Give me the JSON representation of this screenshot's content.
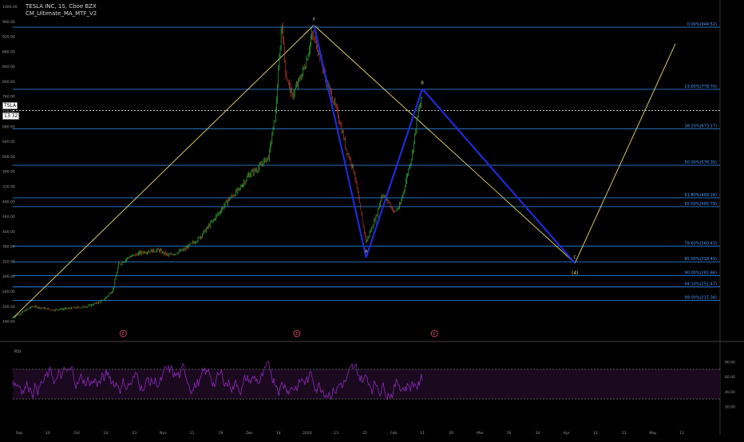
{
  "chart_data": [
    {
      "type": "line",
      "title": "TESLA INC, 1S, Cboe BZX",
      "subtitle": "CM_Ultimate_MA_MTF_V2",
      "ylim": [
        140,
        1000
      ],
      "y_ticks": [
        "1000.00",
        "960.00",
        "920.00",
        "880.00",
        "840.00",
        "800.00",
        "760.00",
        "720.00",
        "680.00",
        "640.00",
        "600.00",
        "560.00",
        "520.00",
        "480.00",
        "440.00",
        "400.00",
        "360.00",
        "320.00",
        "280.00",
        "240.00",
        "200.00",
        "160.00"
      ],
      "x_ticks": [
        "Sep",
        "16",
        "Oct",
        "14",
        "23",
        "Nov",
        "11",
        "19",
        "Dec",
        "14",
        "2020",
        "13",
        "22",
        "Feb",
        "11",
        "20",
        "Mar",
        "16",
        "24",
        "Apr",
        "13",
        "21",
        "May",
        "11"
      ],
      "price_path": [
        {
          "t": 0,
          "price": 170
        },
        {
          "t": 20,
          "price": 200
        },
        {
          "t": 40,
          "price": 190
        },
        {
          "t": 60,
          "price": 195
        },
        {
          "t": 75,
          "price": 200
        },
        {
          "t": 90,
          "price": 215
        },
        {
          "t": 100,
          "price": 245
        },
        {
          "t": 105,
          "price": 310
        },
        {
          "t": 115,
          "price": 330
        },
        {
          "t": 130,
          "price": 345
        },
        {
          "t": 145,
          "price": 350
        },
        {
          "t": 155,
          "price": 335
        },
        {
          "t": 170,
          "price": 350
        },
        {
          "t": 185,
          "price": 380
        },
        {
          "t": 200,
          "price": 430
        },
        {
          "t": 215,
          "price": 485
        },
        {
          "t": 225,
          "price": 510
        },
        {
          "t": 235,
          "price": 550
        },
        {
          "t": 245,
          "price": 570
        },
        {
          "t": 255,
          "price": 600
        },
        {
          "t": 262,
          "price": 720
        },
        {
          "t": 268,
          "price": 960
        },
        {
          "t": 272,
          "price": 820
        },
        {
          "t": 278,
          "price": 760
        },
        {
          "t": 285,
          "price": 800
        },
        {
          "t": 292,
          "price": 850
        },
        {
          "t": 298,
          "price": 925
        },
        {
          "t": 305,
          "price": 880
        },
        {
          "t": 312,
          "price": 800
        },
        {
          "t": 318,
          "price": 760
        },
        {
          "t": 325,
          "price": 700
        },
        {
          "t": 332,
          "price": 620
        },
        {
          "t": 340,
          "price": 560
        },
        {
          "t": 348,
          "price": 430
        },
        {
          "t": 352,
          "price": 370
        },
        {
          "t": 356,
          "price": 400
        },
        {
          "t": 362,
          "price": 440
        },
        {
          "t": 368,
          "price": 500
        },
        {
          "t": 374,
          "price": 480
        },
        {
          "t": 380,
          "price": 450
        },
        {
          "t": 386,
          "price": 470
        },
        {
          "t": 392,
          "price": 540
        },
        {
          "t": 398,
          "price": 610
        },
        {
          "t": 404,
          "price": 720
        },
        {
          "t": 408,
          "price": 760
        }
      ],
      "harmonic_pattern": {
        "points": [
          {
            "t": 300,
            "price": 950,
            "label": "X"
          },
          {
            "t": 352,
            "price": 330,
            "label": "A"
          },
          {
            "t": 408,
            "price": 780,
            "label": "B"
          },
          {
            "t": 560,
            "price": 315,
            "label": "C"
          }
        ],
        "projection_label": "(4)"
      },
      "yellow_lines": [
        {
          "from": {
            "t": 0,
            "price": 168
          },
          "to": {
            "t": 300,
            "price": 950
          }
        },
        {
          "from": {
            "t": 300,
            "price": 950
          },
          "to": {
            "t": 560,
            "price": 315
          }
        },
        {
          "from": {
            "t": 560,
            "price": 315
          },
          "to": {
            "t": 660,
            "price": 900
          }
        }
      ],
      "current_price": "722.00",
      "price_tag": "TSLA",
      "price_tag_2": "13:32",
      "fib_levels": [
        {
          "label": "0.00%(944.52)",
          "price": 944.52
        },
        {
          "label": "23.60%(778.70)",
          "price": 778.7
        },
        {
          "label": "38.20%(673.17)",
          "price": 673.17
        },
        {
          "label": "50.00%(576.35)",
          "price": 576.35
        },
        {
          "label": "61.80%(489.26)",
          "price": 489.26
        },
        {
          "label": "65.00%(465.79)",
          "price": 465.79
        },
        {
          "label": "78.60%(360.43)",
          "price": 360.43
        },
        {
          "label": "85.00%(318.49)",
          "price": 318.49
        },
        {
          "label": "90.00%(281.66)",
          "price": 281.66
        },
        {
          "label": "94.10%(251.47)",
          "price": 251.47
        },
        {
          "label": "99.00%(215.38)",
          "price": 215.38
        }
      ],
      "circle_markers": [
        "E",
        "E",
        "E"
      ]
    },
    {
      "type": "line",
      "title": "RSI",
      "ylim": [
        0,
        100
      ],
      "y_ticks": [
        "80.00",
        "60.00",
        "40.00",
        "20.00"
      ],
      "bands": {
        "upper": 70,
        "lower": 30
      },
      "note": "oscillating series",
      "range": [
        25,
        85
      ]
    }
  ],
  "colors": {
    "background": "#000000",
    "fib_line": "#2e7fd6",
    "fib_label": "#4a9cff",
    "yellow": "#e7dd72",
    "pattern": "#1f2bd8",
    "candle_up": "#2fb53b",
    "candle_down": "#c0392b",
    "rsi": "#8a2bb5",
    "rsi_band_fill": "#1b0920",
    "grid_text": "#9a9a9a"
  }
}
